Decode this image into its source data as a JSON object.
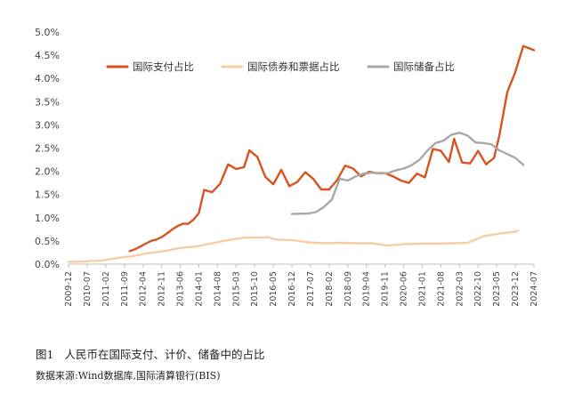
{
  "chart_data": {
    "type": "line",
    "title": "",
    "xlabel": "",
    "ylabel": "",
    "ylim": [
      0,
      5
    ],
    "y_ticks": [
      "0.0%",
      "0.5%",
      "1.0%",
      "1.5%",
      "2.0%",
      "2.5%",
      "3.0%",
      "3.5%",
      "4.0%",
      "4.5%",
      "5.0%"
    ],
    "x_ticks": [
      "2009-12",
      "2010-07",
      "2011-02",
      "2011-09",
      "2012-04",
      "2012-11",
      "2013-06",
      "2014-01",
      "2014-08",
      "2015-03",
      "2015-10",
      "2016-05",
      "2016-12",
      "2017-07",
      "2018-02",
      "2018-09",
      "2019-04",
      "2019-11",
      "2020-06",
      "2021-01",
      "2021-08",
      "2022-03",
      "2022-10",
      "2023-05",
      "2023-12",
      "2024-07"
    ],
    "grid": false,
    "legend": "top-left",
    "series": [
      {
        "name": "国际支付占比",
        "color": "#D9531E",
        "points": [
          [
            "2011-11",
            0.28
          ],
          [
            "2012-01",
            0.32
          ],
          [
            "2012-03",
            0.38
          ],
          [
            "2012-05",
            0.44
          ],
          [
            "2012-07",
            0.5
          ],
          [
            "2012-09",
            0.53
          ],
          [
            "2012-11",
            0.58
          ],
          [
            "2013-01",
            0.66
          ],
          [
            "2013-03",
            0.75
          ],
          [
            "2013-05",
            0.82
          ],
          [
            "2013-07",
            0.87
          ],
          [
            "2013-09",
            0.87
          ],
          [
            "2013-11",
            0.96
          ],
          [
            "2014-01",
            1.1
          ],
          [
            "2014-03",
            1.6
          ],
          [
            "2014-06",
            1.55
          ],
          [
            "2014-09",
            1.73
          ],
          [
            "2014-12",
            2.15
          ],
          [
            "2015-03",
            2.05
          ],
          [
            "2015-06",
            2.09
          ],
          [
            "2015-08",
            2.45
          ],
          [
            "2015-11",
            2.31
          ],
          [
            "2016-02",
            1.88
          ],
          [
            "2016-05",
            1.72
          ],
          [
            "2016-08",
            2.03
          ],
          [
            "2016-11",
            1.68
          ],
          [
            "2017-02",
            1.77
          ],
          [
            "2017-05",
            1.98
          ],
          [
            "2017-08",
            1.84
          ],
          [
            "2017-11",
            1.61
          ],
          [
            "2018-02",
            1.61
          ],
          [
            "2018-05",
            1.81
          ],
          [
            "2018-08",
            2.12
          ],
          [
            "2018-11",
            2.06
          ],
          [
            "2019-02",
            1.89
          ],
          [
            "2019-05",
            1.99
          ],
          [
            "2019-08",
            1.96
          ],
          [
            "2019-11",
            1.96
          ],
          [
            "2020-02",
            1.89
          ],
          [
            "2020-05",
            1.8
          ],
          [
            "2020-08",
            1.75
          ],
          [
            "2020-11",
            1.95
          ],
          [
            "2021-02",
            1.87
          ],
          [
            "2021-05",
            2.48
          ],
          [
            "2021-08",
            2.44
          ],
          [
            "2021-11",
            2.2
          ],
          [
            "2022-01",
            2.7
          ],
          [
            "2022-04",
            2.19
          ],
          [
            "2022-07",
            2.17
          ],
          [
            "2022-10",
            2.44
          ],
          [
            "2023-01",
            2.15
          ],
          [
            "2023-04",
            2.29
          ],
          [
            "2023-06",
            2.77
          ],
          [
            "2023-09",
            3.71
          ],
          [
            "2023-12",
            4.14
          ],
          [
            "2024-03",
            4.7
          ],
          [
            "2024-07",
            4.61
          ]
        ]
      },
      {
        "name": "国际债券和票据占比",
        "color": "#F6CDA5",
        "points": [
          [
            "2009-12",
            0.05
          ],
          [
            "2010-06",
            0.06
          ],
          [
            "2011-01",
            0.08
          ],
          [
            "2011-06",
            0.13
          ],
          [
            "2011-12",
            0.17
          ],
          [
            "2012-06",
            0.24
          ],
          [
            "2012-12",
            0.28
          ],
          [
            "2013-06",
            0.35
          ],
          [
            "2013-12",
            0.38
          ],
          [
            "2014-06",
            0.45
          ],
          [
            "2014-12",
            0.52
          ],
          [
            "2015-06",
            0.57
          ],
          [
            "2015-12",
            0.57
          ],
          [
            "2016-03",
            0.58
          ],
          [
            "2016-06",
            0.53
          ],
          [
            "2016-12",
            0.52
          ],
          [
            "2017-06",
            0.47
          ],
          [
            "2017-12",
            0.45
          ],
          [
            "2018-06",
            0.46
          ],
          [
            "2018-12",
            0.45
          ],
          [
            "2019-06",
            0.45
          ],
          [
            "2019-12",
            0.4
          ],
          [
            "2020-06",
            0.43
          ],
          [
            "2020-12",
            0.44
          ],
          [
            "2021-06",
            0.44
          ],
          [
            "2021-12",
            0.45
          ],
          [
            "2022-06",
            0.46
          ],
          [
            "2022-12",
            0.6
          ],
          [
            "2023-06",
            0.66
          ],
          [
            "2023-12",
            0.7
          ],
          [
            "2024-01",
            0.72
          ]
        ]
      },
      {
        "name": "国际储备占比",
        "color": "#A8A8A8",
        "points": [
          [
            "2016-12",
            1.08
          ],
          [
            "2017-06",
            1.09
          ],
          [
            "2017-09",
            1.12
          ],
          [
            "2017-12",
            1.23
          ],
          [
            "2018-03",
            1.39
          ],
          [
            "2018-06",
            1.84
          ],
          [
            "2018-09",
            1.8
          ],
          [
            "2018-12",
            1.89
          ],
          [
            "2019-03",
            1.95
          ],
          [
            "2019-06",
            1.97
          ],
          [
            "2019-09",
            1.95
          ],
          [
            "2019-12",
            1.96
          ],
          [
            "2020-03",
            2.02
          ],
          [
            "2020-06",
            2.06
          ],
          [
            "2020-09",
            2.13
          ],
          [
            "2020-12",
            2.25
          ],
          [
            "2021-03",
            2.45
          ],
          [
            "2021-06",
            2.61
          ],
          [
            "2021-09",
            2.66
          ],
          [
            "2021-12",
            2.79
          ],
          [
            "2022-03",
            2.83
          ],
          [
            "2022-06",
            2.77
          ],
          [
            "2022-09",
            2.62
          ],
          [
            "2022-12",
            2.61
          ],
          [
            "2023-03",
            2.58
          ],
          [
            "2023-06",
            2.45
          ],
          [
            "2023-09",
            2.37
          ],
          [
            "2023-12",
            2.29
          ],
          [
            "2024-03",
            2.14
          ]
        ]
      }
    ]
  },
  "caption": {
    "figure_no": "图1",
    "text": "人民币在国际支付、计价、储备中的占比"
  },
  "source": "数据来源:Wind数据库,国际清算银行(BIS)"
}
